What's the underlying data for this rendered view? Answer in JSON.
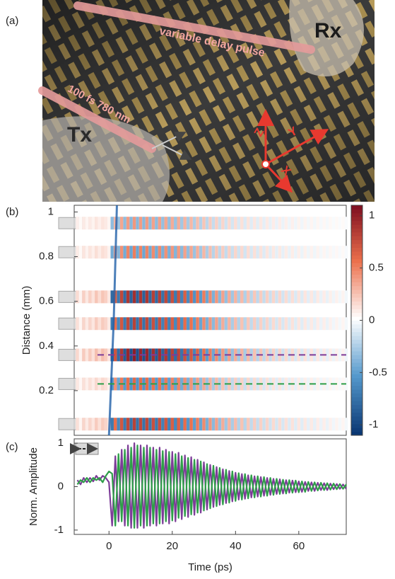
{
  "panel_a": {
    "label": "(a)",
    "beam_top": "variable delay pulse",
    "beam_left": "100 fs 780 nm",
    "tx": "Tx",
    "rx": "Rx",
    "axis_z": "Z",
    "axis_y": "Y",
    "axis_x": "X"
  },
  "chart_data": [
    {
      "type": "heatmap",
      "panel_label": "(b)",
      "ylabel": "Distance (mm)",
      "xlim": [
        -11,
        75
      ],
      "ylim": [
        0,
        1.03
      ],
      "yticks": [
        0.2,
        0.4,
        0.6,
        0.8,
        1
      ],
      "bands": {
        "distances": [
          0.05,
          0.23,
          0.36,
          0.5,
          0.62,
          0.82,
          0.95
        ],
        "amplitudes": [
          0.8,
          0.6,
          1,
          0.8,
          0.9,
          0.5,
          0.4
        ]
      },
      "markers": [
        {
          "value": 0.36,
          "color": "#7d3c98"
        },
        {
          "value": 0.23,
          "color": "#2e9e48"
        }
      ],
      "colorbar": {
        "lim": [
          -1.1,
          1.1
        ],
        "ticks": [
          -1,
          -0.5,
          0,
          0.5,
          1
        ]
      }
    },
    {
      "type": "line",
      "panel_label": "(c)",
      "ylabel": "Norm. Amplitude",
      "xlabel": "Time (ps)",
      "xlim": [
        -11,
        75
      ],
      "xticks": [
        0,
        20,
        40,
        60
      ],
      "ylim": [
        -1.1,
        1.1
      ],
      "yticks": [
        -1,
        0,
        1
      ],
      "x": [
        -10,
        -9,
        -8,
        -7,
        -6,
        -5,
        -4,
        -3,
        -2,
        -1,
        0,
        1,
        2,
        3,
        4,
        5,
        6,
        7,
        8,
        9,
        10,
        11,
        12,
        13,
        14,
        15,
        16,
        17,
        18,
        19,
        20,
        21,
        22,
        23,
        24,
        25,
        26,
        27,
        28,
        29,
        30,
        31,
        32,
        33,
        34,
        35,
        36,
        37,
        38,
        39,
        40,
        41,
        42,
        43,
        44,
        45,
        46,
        47,
        48,
        49,
        50,
        51,
        52,
        53,
        54,
        55,
        56,
        57,
        58,
        59,
        60,
        61,
        62,
        63,
        64,
        65,
        66,
        67,
        68,
        69,
        70,
        71,
        72,
        73,
        74,
        75
      ],
      "series": [
        {
          "color": "#7d3c98",
          "values": [
            0.15,
            0.05,
            0.2,
            0.1,
            0.2,
            0.12,
            0.25,
            0.15,
            0.25,
            0.2,
            0.1,
            -0.9,
            0.7,
            -0.8,
            0.85,
            -0.9,
            0.95,
            -0.95,
            1.0,
            -0.95,
            0.95,
            -0.95,
            0.95,
            -0.9,
            0.9,
            -0.9,
            0.9,
            -0.85,
            0.85,
            -0.85,
            0.8,
            -0.8,
            0.78,
            -0.75,
            0.72,
            -0.7,
            0.68,
            -0.65,
            0.62,
            -0.6,
            0.56,
            -0.53,
            0.5,
            -0.47,
            0.45,
            -0.42,
            0.4,
            -0.38,
            0.36,
            -0.34,
            0.32,
            -0.3,
            0.29,
            -0.28,
            0.26,
            -0.25,
            0.24,
            -0.23,
            0.22,
            -0.21,
            0.2,
            -0.19,
            0.18,
            -0.17,
            0.17,
            -0.16,
            0.15,
            -0.14,
            0.14,
            -0.13,
            0.12,
            -0.12,
            0.11,
            -0.1,
            0.1,
            -0.1,
            0.09,
            -0.08,
            0.08,
            -0.08,
            0.07,
            -0.06,
            0.06,
            -0.05,
            0.05,
            -0.05
          ]
        },
        {
          "color": "#2e9e48",
          "values": [
            0.05,
            0.15,
            0.1,
            0.2,
            0.1,
            0.2,
            0.15,
            0.2,
            0.1,
            0.25,
            0.35,
            0.3,
            -0.9,
            0.75,
            -0.8,
            0.85,
            -0.9,
            0.9,
            -0.95,
            0.95,
            -0.9,
            0.9,
            -0.9,
            0.9,
            -0.85,
            0.85,
            -0.85,
            0.82,
            -0.8,
            0.8,
            -0.78,
            0.75,
            -0.72,
            0.7,
            -0.68,
            0.66,
            -0.64,
            0.62,
            -0.6,
            0.58,
            -0.55,
            0.52,
            -0.5,
            0.48,
            -0.45,
            0.43,
            -0.41,
            0.39,
            -0.37,
            0.35,
            -0.33,
            0.31,
            -0.3,
            0.29,
            -0.27,
            0.26,
            -0.25,
            0.24,
            -0.23,
            0.22,
            -0.21,
            0.2,
            -0.19,
            0.18,
            -0.17,
            0.16,
            -0.16,
            0.15,
            -0.14,
            0.14,
            -0.13,
            0.12,
            -0.12,
            0.11,
            -0.1,
            0.1,
            -0.09,
            0.09,
            -0.08,
            0.08,
            -0.07,
            0.07,
            -0.06,
            0.06,
            -0.05,
            0.05
          ]
        }
      ]
    }
  ]
}
